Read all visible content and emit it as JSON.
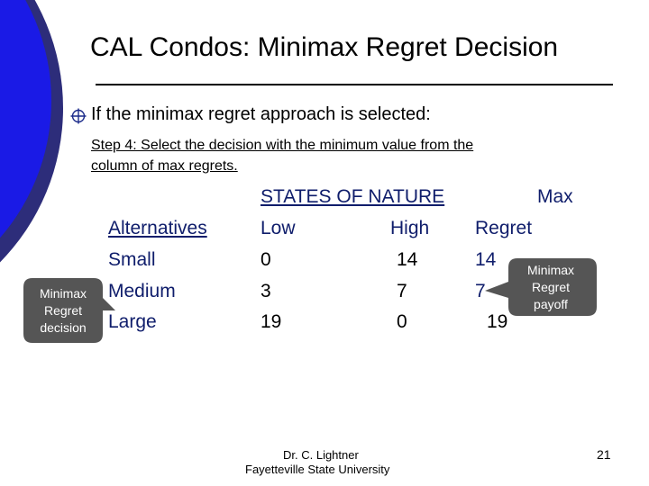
{
  "slide": {
    "title": "CAL Condos: Minimax Regret Decision",
    "bullet": "If the minimax regret approach is selected:",
    "step_line_1": "Step 4:  Select the decision with the minimum value from the",
    "step_line_2": "column of max regrets."
  },
  "table": {
    "states_header": "STATES OF NATURE",
    "max_header": "Max",
    "alternatives_header": "Alternatives",
    "low_header": "Low",
    "high_header": "High",
    "regret_header": "Regret",
    "rows": [
      {
        "alternative": "Small",
        "low": "0",
        "high": "14",
        "max_regret": "14"
      },
      {
        "alternative": "Medium",
        "low": "3",
        "high": "7",
        "max_regret": "7"
      },
      {
        "alternative": "Large",
        "low": "19",
        "high": "0",
        "max_regret": "19"
      }
    ]
  },
  "callouts": {
    "left": [
      "Minimax",
      "Regret",
      "decision"
    ],
    "right": [
      "Minimax",
      "Regret",
      "payoff"
    ]
  },
  "footer": {
    "line_1": "Dr. C. Lightner",
    "line_2": "Fayetteville State University",
    "page_number": "21"
  },
  "colors": {
    "left_decor": "#1a1ae6",
    "left_decor_dark": "#2d2d7a",
    "table_text": "#0f1d6b",
    "callout": "#555555"
  }
}
